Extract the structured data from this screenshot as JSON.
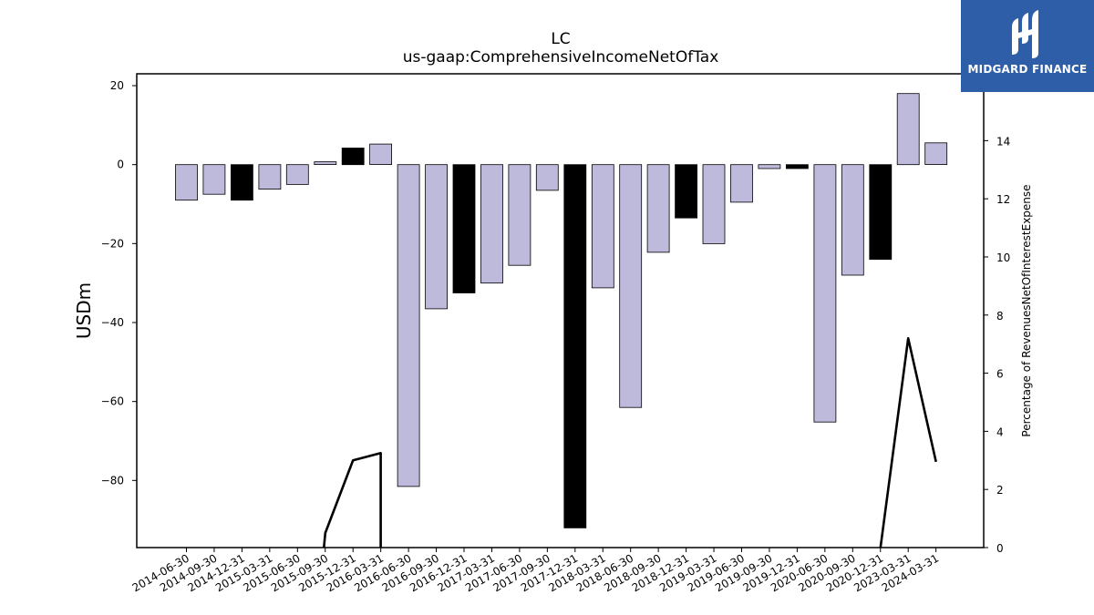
{
  "brand": {
    "name": "MIDGARD FINANCE",
    "logo_icon": "midgard-logo-icon",
    "color": "#2f5ea8"
  },
  "chart_data": {
    "type": "bar",
    "title": "LC",
    "subtitle": "us-gaap:ComprehensiveIncomeNetOfTax",
    "ylabel": "USDm",
    "y2label": "Percentage of RevenuesNetOfInterestExpense",
    "ylim": [
      -97,
      23
    ],
    "y2lim": [
      0,
      16.3
    ],
    "yticks": [
      20,
      0,
      -20,
      -40,
      -60,
      -80
    ],
    "y2ticks": [
      0,
      2,
      4,
      6,
      8,
      10,
      12,
      14
    ],
    "categories": [
      "2014-06-30",
      "2014-09-30",
      "2014-12-31",
      "2015-03-31",
      "2015-06-30",
      "2015-09-30",
      "2015-12-31",
      "2016-03-31",
      "2016-06-30",
      "2016-09-30",
      "2016-12-31",
      "2017-03-31",
      "2017-06-30",
      "2017-09-30",
      "2017-12-31",
      "2018-03-31",
      "2018-06-30",
      "2018-09-30",
      "2018-12-31",
      "2019-03-31",
      "2019-06-30",
      "2019-09-30",
      "2019-12-31",
      "2020-06-30",
      "2020-09-30",
      "2020-12-31",
      "2023-03-31",
      "2024-03-31"
    ],
    "series": [
      {
        "type": "bar",
        "axis": "left",
        "values": [
          -9,
          -7.5,
          -9,
          -6.2,
          -5,
          0.7,
          4.2,
          5.2,
          -81.5,
          -36.5,
          -32.5,
          -30,
          -25.5,
          -6.5,
          -92,
          -31.2,
          -61.5,
          -22.2,
          -13.5,
          -20,
          -9.5,
          -1,
          -1,
          -65.2,
          -28,
          -24,
          18,
          5.5
        ],
        "colors": [
          "#bebadb",
          "#bebadb",
          "#000000",
          "#bebadb",
          "#bebadb",
          "#bebadb",
          "#000000",
          "#bebadb",
          "#bebadb",
          "#bebadb",
          "#000000",
          "#bebadb",
          "#bebadb",
          "#bebadb",
          "#000000",
          "#bebadb",
          "#bebadb",
          "#bebadb",
          "#000000",
          "#bebadb",
          "#bebadb",
          "#bebadb",
          "#000000",
          "#bebadb",
          "#bebadb",
          "#000000",
          "#bebadb",
          "#bebadb"
        ]
      },
      {
        "type": "line",
        "axis": "right",
        "color": "#000000",
        "points": [
          {
            "x": "2015-09-30",
            "y": 0
          },
          {
            "x": "2015-09-30",
            "y": 0.5
          },
          {
            "x": "2015-12-31",
            "y": 3.0
          },
          {
            "x": "2016-03-31",
            "y": 3.25
          },
          {
            "x": "2016-03-31",
            "y": 0
          },
          null,
          {
            "x": "2020-12-31",
            "y": 0
          },
          {
            "x": "2023-03-31",
            "y": 7.2
          },
          {
            "x": "2024-03-31",
            "y": 2.95
          }
        ]
      }
    ],
    "grid": false
  }
}
